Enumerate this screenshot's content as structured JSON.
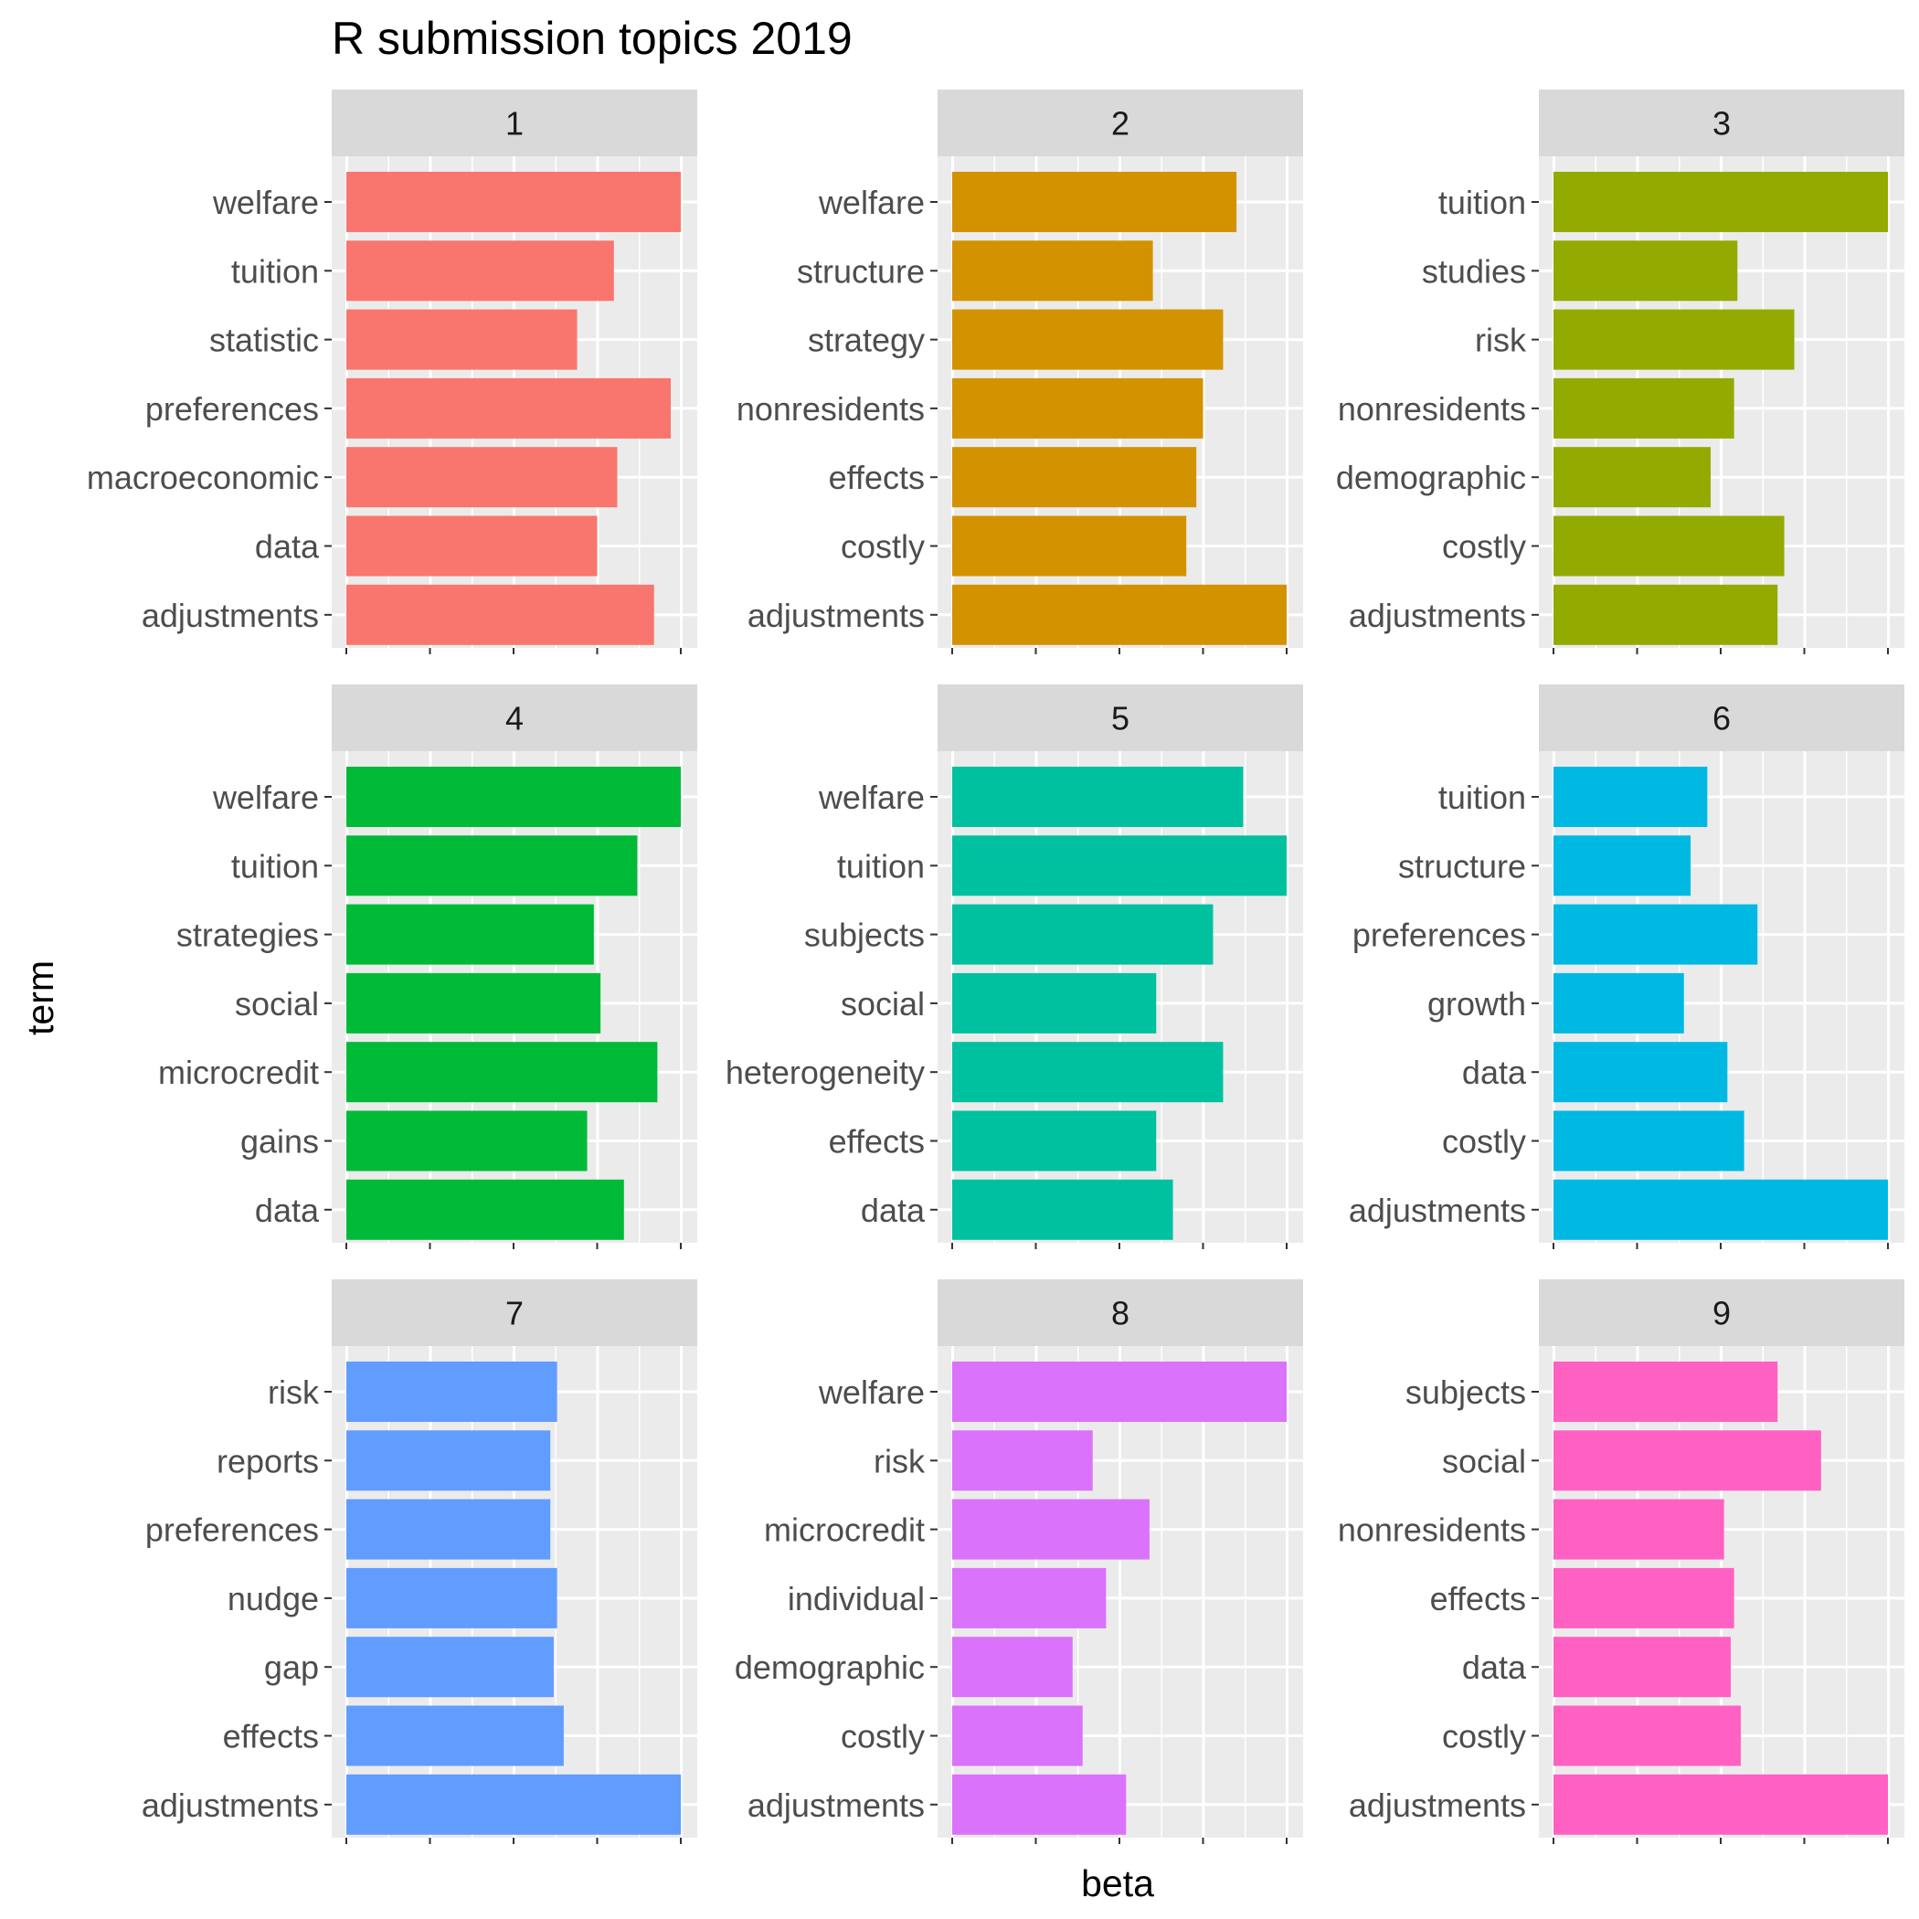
{
  "chart_data": {
    "type": "bar",
    "title": "R submission topics 2019",
    "xlabel": "beta",
    "ylabel": "term",
    "orientation": "horizontal",
    "facets": "3x3 grid",
    "grid": true,
    "x_tick_labels_shown": false,
    "legend": "none",
    "xlim": [
      0,
      1
    ],
    "value_scale": "relative to facet range (axis values not printed)",
    "panels": [
      {
        "label": "1",
        "color": "#F8766D",
        "terms": [
          "welfare",
          "tuition",
          "statistic",
          "preferences",
          "macroeconomic",
          "data",
          "adjustments"
        ],
        "values": [
          1.0,
          0.8,
          0.69,
          0.97,
          0.81,
          0.75,
          0.92
        ]
      },
      {
        "label": "2",
        "color": "#D39200",
        "terms": [
          "welfare",
          "structure",
          "strategy",
          "nonresidents",
          "effects",
          "costly",
          "adjustments"
        ],
        "values": [
          0.85,
          0.6,
          0.81,
          0.75,
          0.73,
          0.7,
          1.0
        ]
      },
      {
        "label": "3",
        "color": "#93AA00",
        "terms": [
          "tuition",
          "studies",
          "risk",
          "nonresidents",
          "demographic",
          "costly",
          "adjustments"
        ],
        "values": [
          1.0,
          0.55,
          0.72,
          0.54,
          0.47,
          0.69,
          0.67
        ]
      },
      {
        "label": "4",
        "color": "#00BA38",
        "terms": [
          "welfare",
          "tuition",
          "strategies",
          "social",
          "microcredit",
          "gains",
          "data"
        ],
        "values": [
          1.0,
          0.87,
          0.74,
          0.76,
          0.93,
          0.72,
          0.83
        ]
      },
      {
        "label": "5",
        "color": "#00C19F",
        "terms": [
          "welfare",
          "tuition",
          "subjects",
          "social",
          "heterogeneity",
          "effects",
          "data"
        ],
        "values": [
          0.87,
          1.0,
          0.78,
          0.61,
          0.81,
          0.61,
          0.66
        ]
      },
      {
        "label": "6",
        "color": "#00B9E3",
        "terms": [
          "tuition",
          "structure",
          "preferences",
          "growth",
          "data",
          "costly",
          "adjustments"
        ],
        "values": [
          0.46,
          0.41,
          0.61,
          0.39,
          0.52,
          0.57,
          1.0
        ]
      },
      {
        "label": "7",
        "color": "#619CFF",
        "terms": [
          "risk",
          "reports",
          "preferences",
          "nudge",
          "gap",
          "effects",
          "adjustments"
        ],
        "values": [
          0.63,
          0.61,
          0.61,
          0.63,
          0.62,
          0.65,
          1.0
        ]
      },
      {
        "label": "8",
        "color": "#DB72FB",
        "terms": [
          "welfare",
          "risk",
          "microcredit",
          "individual",
          "demographic",
          "costly",
          "adjustments"
        ],
        "values": [
          1.0,
          0.42,
          0.59,
          0.46,
          0.36,
          0.39,
          0.52
        ]
      },
      {
        "label": "9",
        "color": "#FF61C3",
        "terms": [
          "subjects",
          "social",
          "nonresidents",
          "effects",
          "data",
          "costly",
          "adjustments"
        ],
        "values": [
          0.67,
          0.8,
          0.51,
          0.54,
          0.53,
          0.56,
          1.0
        ]
      }
    ]
  }
}
